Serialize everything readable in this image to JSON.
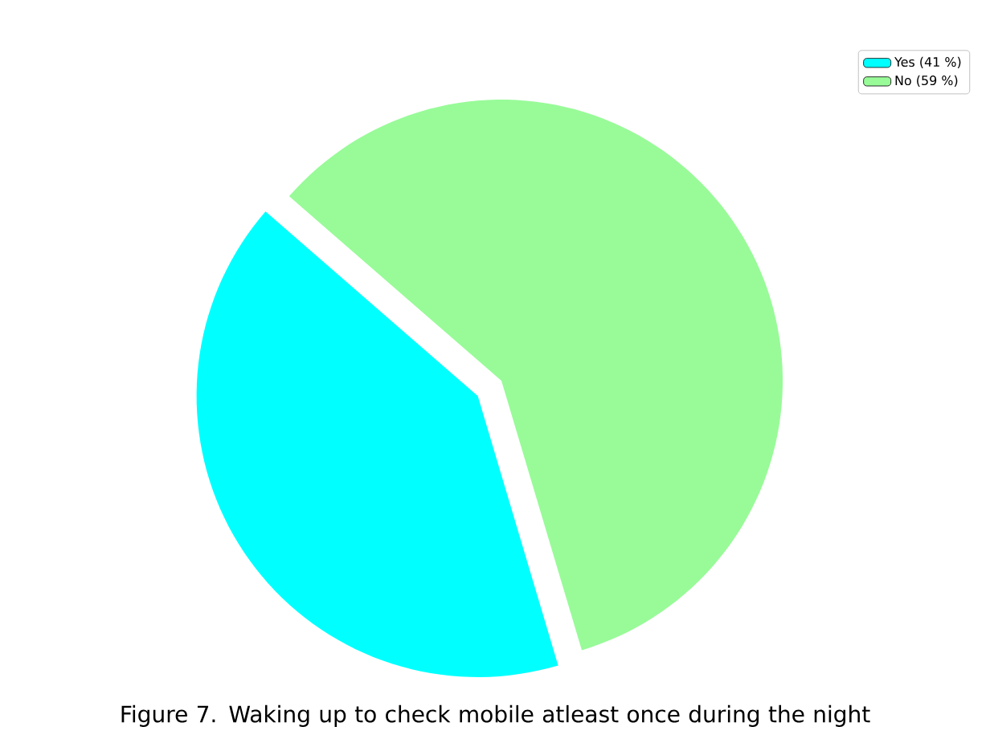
{
  "chart_data": {
    "type": "pie",
    "title": "Figure 7. Waking up to check mobile atleast once during the night",
    "categories": [
      "Yes (41 %)",
      "No (59 %)"
    ],
    "values": [
      41,
      59
    ],
    "colors": [
      "#00ffff",
      "#98fb98"
    ],
    "legend": "top right"
  }
}
